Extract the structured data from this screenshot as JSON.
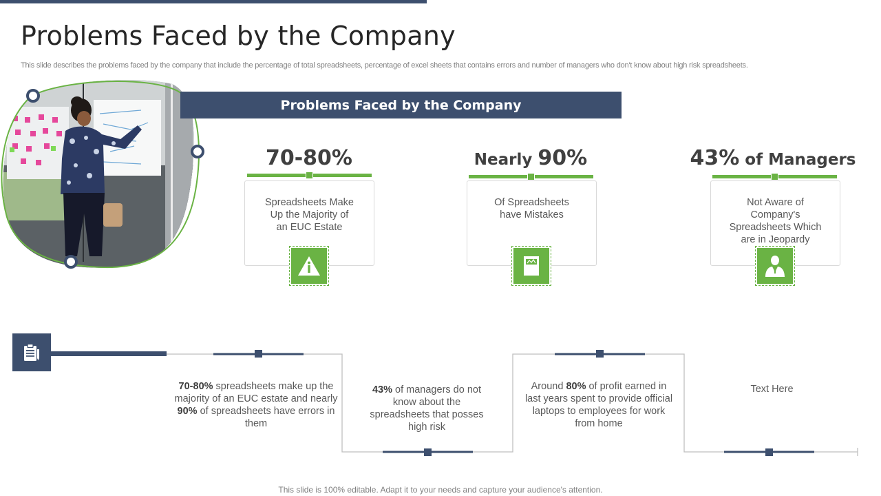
{
  "slide": {
    "title": "Problems Faced by the Company",
    "subtitle": "This slide describes the problems faced by the company that include the percentage of total spreadsheets, percentage of excel sheets that contains errors and number of managers who don't know about high risk spreadsheets.",
    "banner": "Problems Faced by the Company",
    "footer": "This slide is 100% editable. Adapt it to your needs and capture your audience's attention."
  },
  "stats": [
    {
      "prefix": "",
      "value": "70-80%",
      "suffix": "",
      "text": "Spreadsheets Make\nUp the Majority of\nan EUC Estate",
      "icon": "warning-info-icon"
    },
    {
      "prefix": "Nearly ",
      "value": "90%",
      "suffix": "",
      "text": "Of Spreadsheets\nhave Mistakes",
      "icon": "spreadsheet-document-icon"
    },
    {
      "prefix": "",
      "value": "43%",
      "suffix": " of Managers",
      "text": "Not Aware of\nCompany's\nSpreadsheets Which\nare in Jeopardy",
      "icon": "manager-icon"
    }
  ],
  "timeline": {
    "icon": "clipboard-icon",
    "items": [
      {
        "b1": "70-80%",
        "t1": " spreadsheets make up the majority of an EUC estate and nearly ",
        "b2": "90%",
        "t2": " of spreadsheets have errors in them"
      },
      {
        "b1": "43%",
        "t1": " of managers do not know about the spreadsheets that posses high risk",
        "b2": "",
        "t2": ""
      },
      {
        "b1": "",
        "t1": "Around ",
        "b2": "80%",
        "t2": " of profit earned in last years spent to provide official laptops to employees for work from home"
      },
      {
        "b1": "",
        "t1": "Text Here",
        "b2": "",
        "t2": ""
      }
    ]
  },
  "colors": {
    "navy": "#3d4f6e",
    "green": "#6ab344"
  }
}
